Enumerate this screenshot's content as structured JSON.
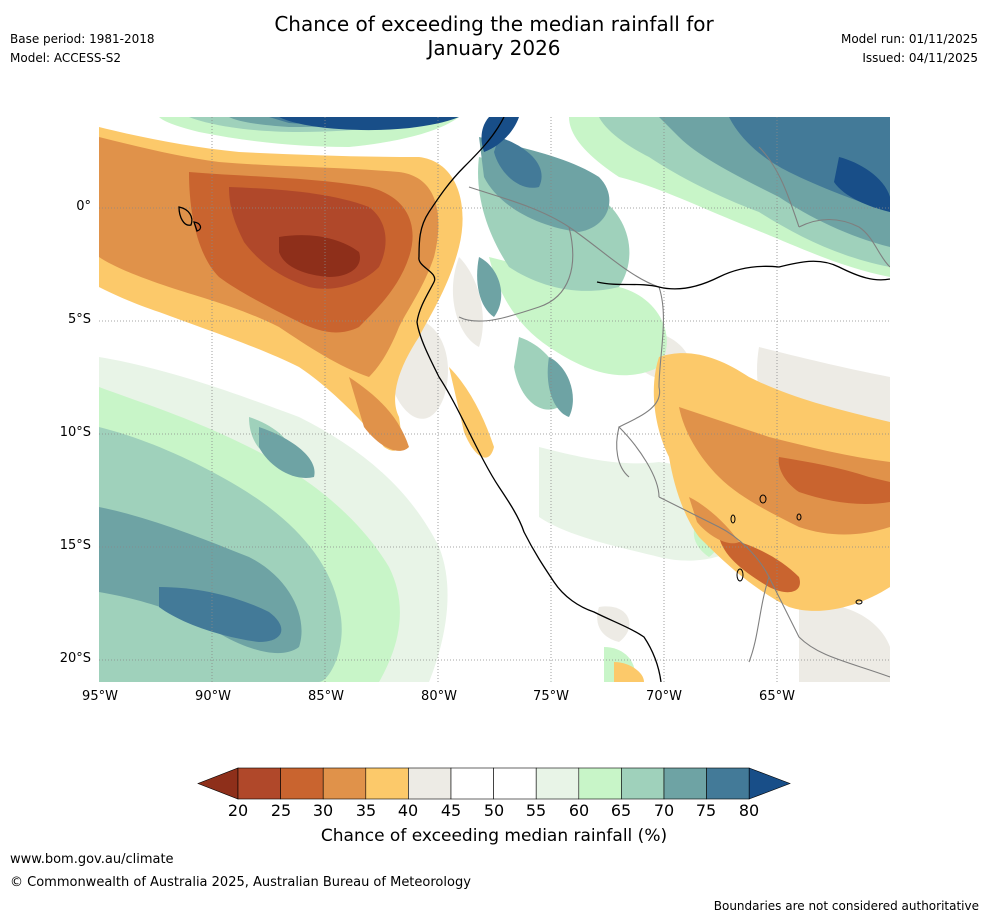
{
  "title_line1": "Chance of exceeding the median rainfall for",
  "title_line2": "January 2026",
  "base_period": "Base period: 1981-2018",
  "model": "Model: ACCESS-S2",
  "model_run": "Model run: 01/11/2025",
  "issued": "Issued: 04/11/2025",
  "lat_labels": [
    "0°",
    "5°S",
    "10°S",
    "15°S",
    "20°S"
  ],
  "lon_labels": [
    "95°W",
    "90°W",
    "85°W",
    "80°W",
    "75°W",
    "70°W",
    "65°W"
  ],
  "colorbar": {
    "ticks": [
      "20",
      "25",
      "30",
      "35",
      "40",
      "45",
      "50",
      "55",
      "60",
      "65",
      "70",
      "75",
      "80"
    ],
    "colors": [
      "#8e2f1a",
      "#b0482a",
      "#c9642f",
      "#e0924a",
      "#fcc96a",
      "#edebe5",
      "#ffffff",
      "#ffffff",
      "#e8f4e7",
      "#c8f5c8",
      "#9fd1bb",
      "#6ea3a4",
      "#437a98",
      "#184e88"
    ],
    "label": "Chance of exceeding median rainfall (%)"
  },
  "footer": {
    "url": "www.bom.gov.au/climate",
    "copyright": "© Commonwealth of Australia 2025, Australian Bureau of Meteorology",
    "note": "Boundaries are not considered authoritative"
  }
}
